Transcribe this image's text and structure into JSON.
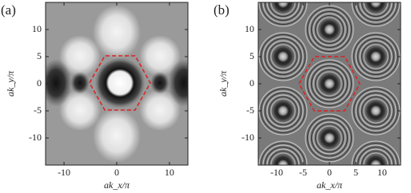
{
  "chart_data": [
    {
      "type": "image",
      "label": "(a)",
      "xlabel": "ak_x/π",
      "ylabel": "ak_y/π",
      "xlim": [
        -13.5,
        13.5
      ],
      "ylim": [
        -15,
        15
      ],
      "xticks": [
        -10,
        0,
        10
      ],
      "yticks": [
        -10,
        -5,
        0,
        5,
        10
      ]
    },
    {
      "type": "image",
      "label": "(b)",
      "xlabel": "ak_x/π",
      "ylabel": "ak_y/π",
      "xlim": [
        -13.5,
        13.5
      ],
      "ylim": [
        -15,
        15
      ],
      "xticks": [
        -10,
        -5,
        0,
        5,
        10
      ],
      "yticks": [
        -10,
        -5,
        0,
        5,
        10
      ]
    }
  ]
}
